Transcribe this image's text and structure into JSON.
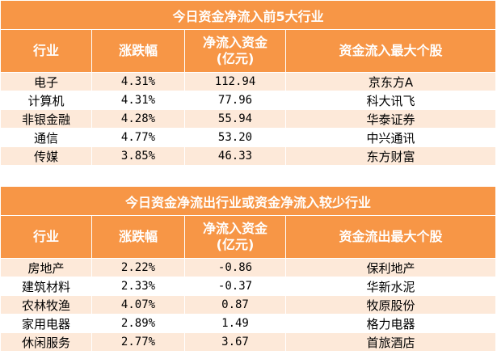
{
  "inflow_table": {
    "title": "今日资金净流入前5大行业",
    "headers": [
      "行业",
      "涨跌幅",
      "净流入资金\n(亿元)",
      "资金流入最大个股"
    ],
    "rows": [
      [
        "电子",
        "4.31%",
        "112.94",
        "京东方A"
      ],
      [
        "计算机",
        "4.31%",
        "77.96",
        "科大讯飞"
      ],
      [
        "非银金融",
        "4.28%",
        "55.94",
        "华泰证券"
      ],
      [
        "通信",
        "4.77%",
        "53.20",
        "中兴通讯"
      ],
      [
        "传媒",
        "3.85%",
        "46.33",
        "东方财富"
      ]
    ]
  },
  "outflow_table": {
    "title": "今日资金净流出行业或资金净流入较少行业",
    "headers": [
      "行业",
      "涨跌幅",
      "净流入资金\n(亿元)",
      "资金流出最大个股"
    ],
    "rows": [
      [
        "房地产",
        "2.22%",
        "-0.86",
        "保利地产"
      ],
      [
        "建筑材料",
        "2.33%",
        "-0.37",
        "华新水泥"
      ],
      [
        "农林牧渔",
        "4.07%",
        "0.87",
        "牧原股份"
      ],
      [
        "家用电器",
        "2.89%",
        "1.49",
        "格力电器"
      ],
      [
        "休闲服务",
        "2.77%",
        "3.67",
        "首旅酒店"
      ]
    ]
  },
  "colors": {
    "header_bg": "#f79646",
    "stripe_bg": "#fde9d9",
    "header_text": "#ffffff"
  }
}
